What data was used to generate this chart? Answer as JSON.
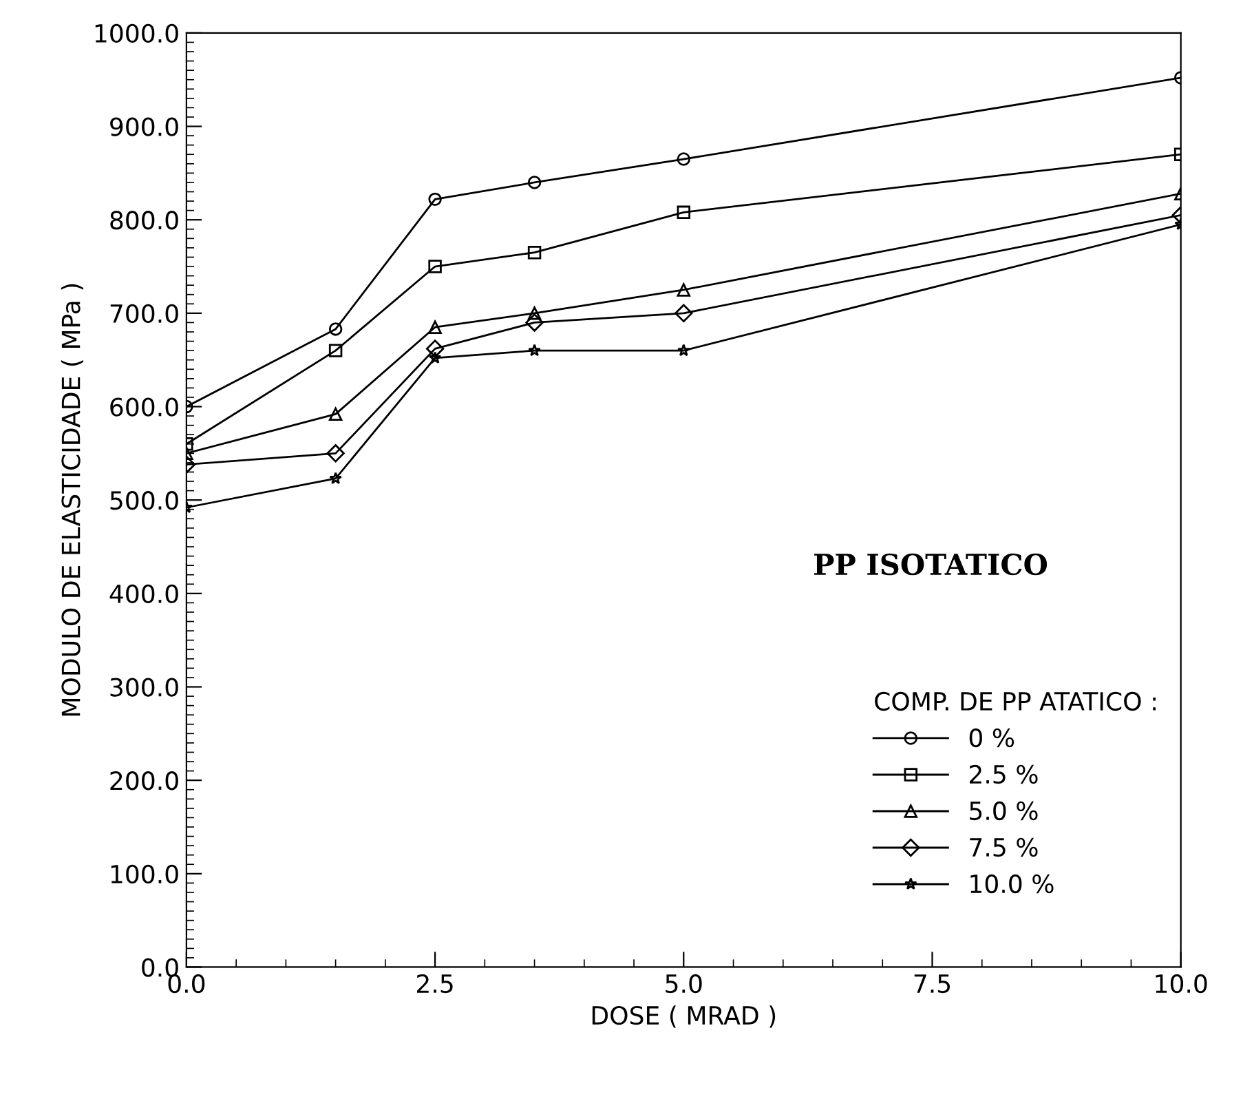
{
  "chart_data": {
    "type": "line",
    "xlabel": "DOSE ( MRAD )",
    "ylabel": "MODULO DE ELASTICIDADE ( MPa )",
    "legend_title": "COMP. DE PP ATATICO :",
    "annotations": [
      "PP ISOTATICO"
    ],
    "x": [
      0,
      1.5,
      2.5,
      3.5,
      5,
      10
    ],
    "series": [
      {
        "name": "0 %",
        "color": "#000000",
        "marker": "circle",
        "values": [
          600,
          683,
          822,
          840,
          865,
          952
        ]
      },
      {
        "name": "2.5 %",
        "color": "#000000",
        "marker": "square",
        "values": [
          560,
          660,
          750,
          765,
          808,
          870
        ]
      },
      {
        "name": "5.0 %",
        "color": "#000000",
        "marker": "triangle",
        "values": [
          550,
          592,
          685,
          700,
          725,
          828
        ]
      },
      {
        "name": "7.5 %",
        "color": "#000000",
        "marker": "diamond",
        "values": [
          538,
          550,
          662,
          690,
          700,
          805
        ]
      },
      {
        "name": "10.0 %",
        "color": "#000000",
        "marker": "star",
        "values": [
          492,
          523,
          652,
          660,
          660,
          795
        ]
      }
    ],
    "xlim": [
      0,
      10
    ],
    "ylim": [
      0,
      1000
    ],
    "xticks": [
      {
        "value": 0,
        "label": "0.0"
      },
      {
        "value": 2.5,
        "label": "2.5"
      },
      {
        "value": 5,
        "label": "5.0"
      },
      {
        "value": 7.5,
        "label": "7.5"
      },
      {
        "value": 10,
        "label": "10.0"
      }
    ],
    "yticks": [
      {
        "value": 0,
        "label": "0.0"
      },
      {
        "value": 100,
        "label": "100.0"
      },
      {
        "value": 200,
        "label": "200.0"
      },
      {
        "value": 300,
        "label": "300.0"
      },
      {
        "value": 400,
        "label": "400.0"
      },
      {
        "value": 500,
        "label": "500.0"
      },
      {
        "value": 600,
        "label": "600.0"
      },
      {
        "value": 700,
        "label": "700.0"
      },
      {
        "value": 800,
        "label": "800.0"
      },
      {
        "value": 900,
        "label": "900.0"
      },
      {
        "value": 1000,
        "label": "1000.0"
      }
    ],
    "grid": false,
    "legend": "bottom right",
    "line_style": "solid"
  }
}
